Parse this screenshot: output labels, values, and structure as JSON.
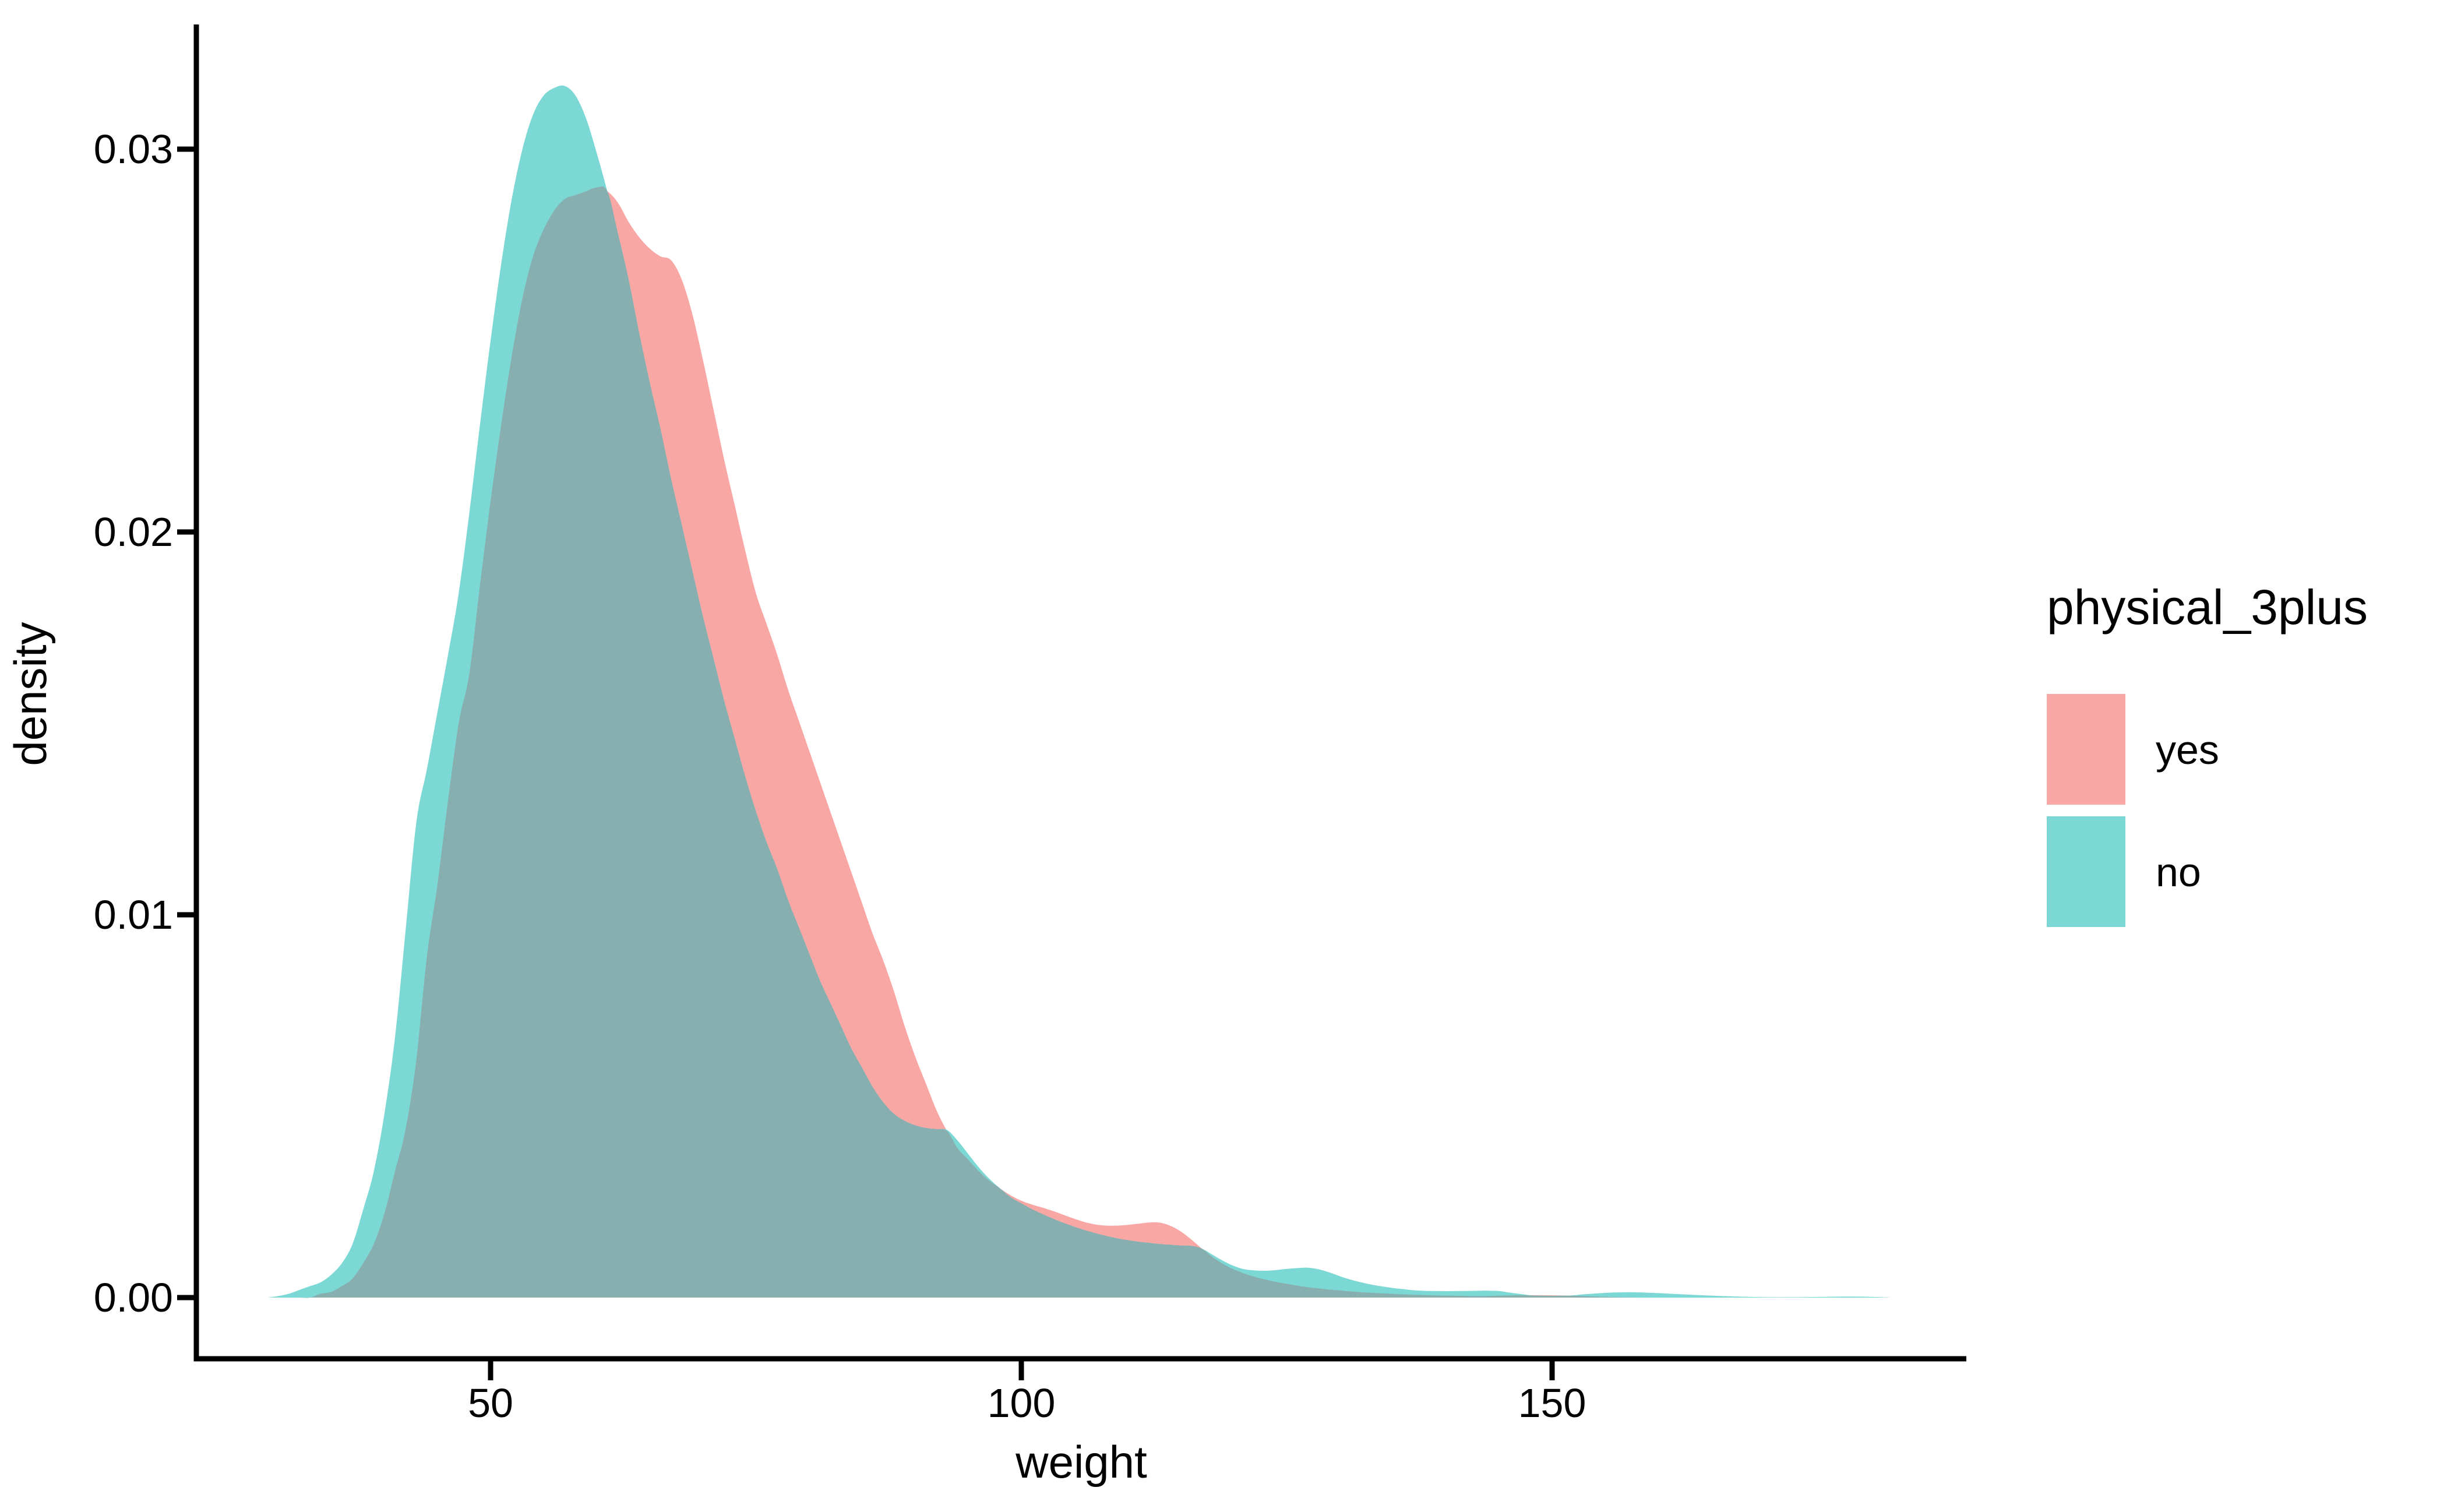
{
  "chart_data": {
    "type": "area",
    "subtype": "overlaid-density",
    "title": "",
    "xlabel": "weight",
    "ylabel": "density",
    "x_ticks": [
      "50",
      "100",
      "150"
    ],
    "x_tick_values": [
      50,
      100,
      150
    ],
    "y_ticks": [
      "0.00",
      "0.01",
      "0.02",
      "0.03"
    ],
    "y_tick_values": [
      0,
      0.01,
      0.02,
      0.03
    ],
    "xlim": [
      22.3,
      189.0
    ],
    "ylim": [
      -0.0016,
      0.0333
    ],
    "grid": "off",
    "legend_position": "right",
    "series": [
      {
        "name": "yes",
        "x": [
          33,
          34,
          35,
          36,
          37,
          38,
          39,
          40,
          41,
          42,
          43,
          44,
          45,
          46,
          47,
          48,
          49,
          50,
          51,
          52,
          53,
          54,
          55,
          56,
          57,
          58,
          59,
          60,
          61,
          62,
          63,
          64,
          65,
          66,
          67,
          68,
          69,
          70,
          71,
          72,
          73,
          74,
          75,
          76,
          77,
          78,
          79,
          80,
          81,
          82,
          83,
          84,
          85,
          86,
          87,
          88,
          89,
          90,
          91,
          92,
          93,
          94,
          95,
          96,
          97,
          98,
          99,
          100,
          101,
          102,
          103,
          104,
          105,
          106,
          107,
          108,
          109,
          110,
          111,
          112,
          113,
          114,
          115,
          116,
          117,
          118,
          119,
          120,
          121,
          122,
          123,
          124,
          125,
          126,
          127,
          128,
          129,
          130,
          131,
          132,
          133,
          134,
          135,
          136,
          137,
          138,
          139,
          140,
          141,
          142,
          143,
          144,
          145,
          146,
          147,
          148,
          149,
          150,
          151,
          152,
          153,
          154,
          155,
          156,
          157,
          158
        ],
        "density": [
          0,
          0.0001,
          0.00015,
          0.0003,
          0.0005,
          0.0009,
          0.0014,
          0.0022,
          0.0033,
          0.0044,
          0.0062,
          0.0089,
          0.0108,
          0.013,
          0.015,
          0.0163,
          0.0186,
          0.0208,
          0.0228,
          0.0246,
          0.0261,
          0.0272,
          0.0279,
          0.0284,
          0.0287,
          0.0288,
          0.0289,
          0.029,
          0.0289,
          0.0286,
          0.0281,
          0.0277,
          0.0274,
          0.0272,
          0.0271,
          0.0266,
          0.0257,
          0.0245,
          0.0232,
          0.0219,
          0.0207,
          0.0195,
          0.0184,
          0.0176,
          0.0168,
          0.0159,
          0.0151,
          0.0143,
          0.0135,
          0.0127,
          0.0119,
          0.0111,
          0.0103,
          0.0095,
          0.0088,
          0.008,
          0.0071,
          0.0063,
          0.0056,
          0.0049,
          0.00435,
          0.0039,
          0.0036,
          0.0033,
          0.00305,
          0.00285,
          0.00267,
          0.00253,
          0.00243,
          0.00235,
          0.00226,
          0.00216,
          0.00206,
          0.00197,
          0.00191,
          0.00188,
          0.00188,
          0.0019,
          0.00193,
          0.00196,
          0.00196,
          0.00188,
          0.00173,
          0.00152,
          0.00128,
          0.00106,
          0.00088,
          0.00074,
          0.00063,
          0.00054,
          0.00047,
          0.00041,
          0.00036,
          0.00031,
          0.00027,
          0.00024,
          0.00021,
          0.000185,
          0.000162,
          0.000142,
          0.000125,
          0.00011,
          9.7e-05,
          8.5e-05,
          7.5e-05,
          6.6e-05,
          5.8e-05,
          5.2e-05,
          4.7e-05,
          4.3e-05,
          4e-05,
          4.2e-05,
          5e-05,
          5.8e-05,
          6.2e-05,
          6.3e-05,
          6.2e-05,
          6e-05,
          5.5e-05,
          4.8e-05,
          3.8e-05,
          2.8e-05,
          1.8e-05,
          1e-05,
          4e-06,
          0
        ]
      },
      {
        "name": "no",
        "x": [
          29,
          30,
          31,
          32,
          33,
          34,
          35,
          36,
          37,
          38,
          39,
          40,
          41,
          42,
          43,
          44,
          45,
          46,
          47,
          48,
          49,
          50,
          51,
          52,
          53,
          54,
          55,
          56,
          57,
          58,
          59,
          60,
          61,
          62,
          63,
          64,
          65,
          66,
          67,
          68,
          69,
          70,
          71,
          72,
          73,
          74,
          75,
          76,
          77,
          78,
          79,
          80,
          81,
          82,
          83,
          84,
          85,
          86,
          87,
          88,
          89,
          90,
          91,
          92,
          93,
          94,
          95,
          96,
          97,
          98,
          99,
          100,
          101,
          102,
          103,
          104,
          105,
          106,
          107,
          108,
          109,
          110,
          111,
          112,
          113,
          114,
          115,
          116,
          117,
          118,
          119,
          120,
          121,
          122,
          123,
          124,
          125,
          126,
          127,
          128,
          129,
          130,
          131,
          132,
          133,
          134,
          135,
          136,
          137,
          138,
          139,
          140,
          141,
          142,
          143,
          144,
          145,
          146,
          147,
          148,
          149,
          150,
          151,
          152,
          153,
          154,
          155,
          156,
          157,
          158,
          159,
          160,
          161,
          162,
          163,
          164,
          165,
          166,
          167,
          168,
          169,
          170,
          171,
          172,
          173,
          174,
          175,
          176,
          177,
          178,
          179,
          180,
          181,
          182
        ],
        "density": [
          0,
          4e-05,
          0.0001,
          0.0002,
          0.0003,
          0.0004,
          0.0006,
          0.0009,
          0.0014,
          0.0023,
          0.0033,
          0.0048,
          0.0068,
          0.0096,
          0.0124,
          0.0138,
          0.0153,
          0.0168,
          0.0184,
          0.0205,
          0.0228,
          0.025,
          0.027,
          0.0287,
          0.03,
          0.0309,
          0.0314,
          0.0316,
          0.03165,
          0.0314,
          0.0308,
          0.0299,
          0.0289,
          0.0278,
          0.0266,
          0.0252,
          0.0239,
          0.0227,
          0.0214,
          0.0202,
          0.019,
          0.0178,
          0.0167,
          0.0156,
          0.0146,
          0.0136,
          0.0127,
          0.0119,
          0.0112,
          0.0104,
          0.0097,
          0.009,
          0.0083,
          0.0077,
          0.0071,
          0.0065,
          0.006,
          0.0055,
          0.0051,
          0.0048,
          0.00462,
          0.0045,
          0.00443,
          0.0044,
          0.00438,
          0.0041,
          0.00375,
          0.0034,
          0.0031,
          0.00285,
          0.00262,
          0.00246,
          0.00231,
          0.00218,
          0.00206,
          0.00195,
          0.00185,
          0.00176,
          0.00168,
          0.00161,
          0.00155,
          0.0015,
          0.00146,
          0.00143,
          0.0014,
          0.00138,
          0.00136,
          0.00135,
          0.00128,
          0.00112,
          0.00096,
          0.00083,
          0.00074,
          0.00071,
          0.0007,
          0.00072,
          0.00075,
          0.00077,
          0.00078,
          0.00074,
          0.00066,
          0.00056,
          0.00047,
          0.0004,
          0.00034,
          0.00029,
          0.00025,
          0.00022,
          0.00019,
          0.000175,
          0.00017,
          0.000168,
          0.00017,
          0.000173,
          0.000177,
          0.00018,
          0.00017,
          0.00013,
          9.5e-05,
          5.8e-05,
          4.8e-05,
          4.5e-05,
          4.8e-05,
          6e-05,
          8.5e-05,
          0.000105,
          0.000122,
          0.000133,
          0.000139,
          0.000137,
          0.000128,
          0.000117,
          0.000104,
          9e-05,
          7.6e-05,
          6.3e-05,
          5.1e-05,
          4e-05,
          3e-05,
          2.2e-05,
          1.6e-05,
          1.2e-05,
          1e-05,
          1e-05,
          1.1e-05,
          1.3e-05,
          1.6e-05,
          2e-05,
          2.4e-05,
          2.6e-05,
          2.5e-05,
          2e-05,
          1.2e-05,
          0
        ]
      }
    ],
    "legend": {
      "title": "physical_3plus",
      "entries": [
        {
          "label": "yes",
          "color": "#F8A7A5"
        },
        {
          "label": "no",
          "color": "#7CD8D4"
        }
      ]
    }
  },
  "colors": {
    "yes_fill": "#F8A7A5",
    "no_fill": "#7CD8D4",
    "overlap_fill": "#88AFB0",
    "axis": "#000000",
    "text": "#000000",
    "background": "#FFFFFF"
  },
  "axes": {
    "x_label": "weight",
    "y_label": "density"
  }
}
